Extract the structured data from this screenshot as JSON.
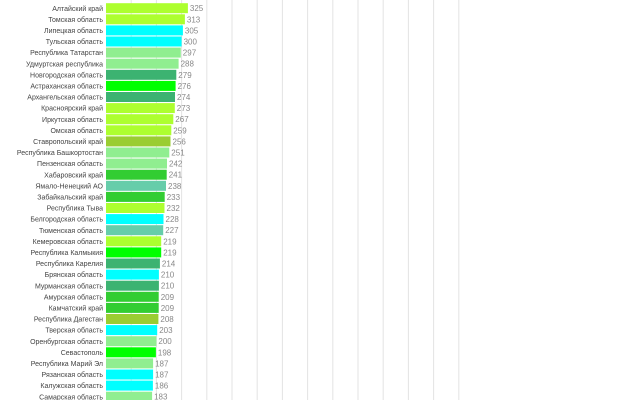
{
  "chart_data": {
    "type": "bar",
    "orientation": "horizontal",
    "grid": true,
    "categories": [
      "Алтайский край",
      "Томская область",
      "Липецкая область",
      "Тульская область",
      "Республика Татарстан",
      "Удмуртская республика",
      "Новгородская область",
      "Астраханская область",
      "Архангельская область",
      "Красноярский край",
      "Иркутская область",
      "Омская область",
      "Ставропольский край",
      "Республика Башкортостан",
      "Пензенская область",
      "Хабаровский край",
      "Ямало-Ненецкий АО",
      "Забайкальский край",
      "Республика Тыва",
      "Белгородская область",
      "Тюменская область",
      "Кемеровская область",
      "Республика Калмыкия",
      "Республика Карелия",
      "Брянская область",
      "Мурманская область",
      "Амурская область",
      "Камчатский край",
      "Республика Дагестан",
      "Тверская область",
      "Оренбургская область",
      "Севастополь",
      "Республика Марий Эл",
      "Рязанская область",
      "Калужская область",
      "Самарская область"
    ],
    "values": [
      325,
      313,
      305,
      300,
      297,
      288,
      279,
      276,
      274,
      273,
      267,
      259,
      256,
      251,
      242,
      241,
      238,
      233,
      232,
      228,
      227,
      219,
      219,
      214,
      210,
      210,
      209,
      209,
      208,
      203,
      200,
      198,
      187,
      187,
      186,
      183
    ],
    "colors": [
      "#adff2f",
      "#adff2f",
      "#00ffff",
      "#00ffff",
      "#90ee90",
      "#90ee90",
      "#3cb371",
      "#00ff00",
      "#3cb371",
      "#adff2f",
      "#adff2f",
      "#adff2f",
      "#9acd32",
      "#90ee90",
      "#90ee90",
      "#32cd32",
      "#66cdaa",
      "#32cd32",
      "#adff2f",
      "#00ffff",
      "#66cdaa",
      "#adff2f",
      "#00ff00",
      "#3cb371",
      "#00ffff",
      "#3cb371",
      "#32cd32",
      "#32cd32",
      "#9acd32",
      "#00ffff",
      "#90ee90",
      "#00ff00",
      "#90ee90",
      "#00ffff",
      "#00ffff",
      "#90ee90"
    ],
    "xlim": [
      0,
      1400
    ],
    "grid_step": 100,
    "label_color": "#444444",
    "value_color": "#888888",
    "gridline_color": "#e3e3e3"
  }
}
